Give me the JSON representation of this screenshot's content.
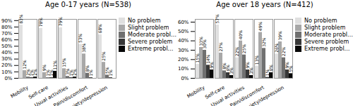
{
  "chart_data": [
    {
      "type": "bar",
      "title": "Age 0-17 years (N=538)",
      "categories": [
        "Mobility",
        "Self-care",
        "Usual activities",
        "Pain/discomfort",
        "Anxiety/depression"
      ],
      "series": [
        {
          "name": "No problem",
          "color": "#e0e0e0",
          "values": [
            83,
            78,
            79,
            53,
            68
          ],
          "value_labels": [
            "83%",
            "78%",
            "79%",
            "53%",
            "68%"
          ]
        },
        {
          "name": "Slight problem",
          "color": "#a8a8a8",
          "values": [
            12,
            9,
            15,
            38,
            25
          ],
          "value_labels": [
            "12%",
            "9%",
            "15%",
            "38%",
            "25%"
          ]
        },
        {
          "name": "Moderate problem",
          "color": "#707070",
          "values": [
            2,
            1,
            3,
            8,
            5
          ],
          "value_labels": [
            "2%",
            "1%",
            "3%",
            "8%",
            "5%"
          ]
        },
        {
          "name": "Severe problem",
          "color": "#383838",
          "values": [
            1,
            1,
            1,
            1,
            1
          ],
          "value_labels": [
            "1%",
            "1%",
            "1%",
            "1%",
            "1%"
          ]
        },
        {
          "name": "Extreme problem",
          "color": "#080808",
          "values": [
            2,
            11,
            2,
            0,
            0
          ],
          "value_labels": [
            "2%",
            "11%",
            "2%",
            null,
            null
          ]
        }
      ],
      "ylim": [
        0,
        92
      ],
      "yticks": [
        {
          "value": 0,
          "label": "0%"
        },
        {
          "value": 10,
          "label": "10%"
        },
        {
          "value": 20,
          "label": "20%"
        },
        {
          "value": 30,
          "label": "30%"
        },
        {
          "value": 40,
          "label": "40%"
        },
        {
          "value": 50,
          "label": "50%"
        },
        {
          "value": 60,
          "label": "60%"
        },
        {
          "value": 70,
          "label": "70%"
        },
        {
          "value": 80,
          "label": "80%"
        },
        {
          "value": 90,
          "label": "90%"
        }
      ],
      "grid": false,
      "legend": "right",
      "data_labels": true
    },
    {
      "type": "bar",
      "title": "Age over 18 years (N=412)",
      "categories": [
        "Mobility",
        "Self-care",
        "Usual activities",
        "Pain/discomfort",
        "Anxiety/depression"
      ],
      "series": [
        {
          "name": "No problem",
          "color": "#e0e0e0",
          "values": [
            15,
            57,
            22,
            13,
            26
          ],
          "value_labels": [
            "15%",
            "57%",
            "22%",
            "13%",
            "26%"
          ]
        },
        {
          "name": "Slight problem",
          "color": "#a8a8a8",
          "values": [
            33,
            27,
            40,
            49,
            39
          ],
          "value_labels": [
            "33%",
            "27%",
            "40%",
            "49%",
            "39%"
          ]
        },
        {
          "name": "Moderate problem",
          "color": "#707070",
          "values": [
            30,
            8,
            25,
            32,
            22
          ],
          "value_labels": [
            "30%",
            "8%",
            "25%",
            "32%",
            "22%"
          ]
        },
        {
          "name": "Severe problem",
          "color": "#383838",
          "values": [
            14,
            6,
            9,
            1,
            9
          ],
          "value_labels": [
            "14%",
            "6%",
            "9%",
            "1%",
            "9%"
          ]
        },
        {
          "name": "Extreme problem",
          "color": "#080808",
          "values": [
            9,
            3,
            3,
            6,
            5
          ],
          "value_labels": [
            "9%",
            "3%",
            "3%",
            "6%",
            "5%"
          ]
        }
      ],
      "ylim": [
        0,
        63
      ],
      "yticks": [
        {
          "value": 0,
          "label": "0%"
        },
        {
          "value": 10,
          "label": "10%"
        },
        {
          "value": 20,
          "label": "20%"
        },
        {
          "value": 30,
          "label": "30%"
        },
        {
          "value": 40,
          "label": "40%"
        },
        {
          "value": 50,
          "label": "50%"
        },
        {
          "value": 60,
          "label": "60%"
        }
      ],
      "grid": false,
      "legend": "right",
      "data_labels": true
    }
  ]
}
